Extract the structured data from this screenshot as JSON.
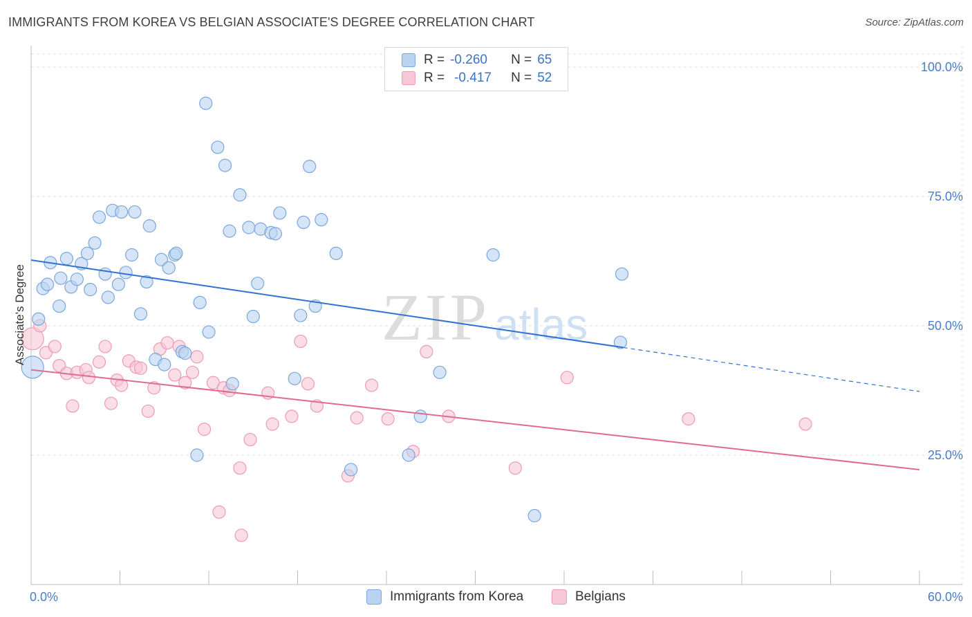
{
  "title": "IMMIGRANTS FROM KOREA VS BELGIAN ASSOCIATE'S DEGREE CORRELATION CHART",
  "source": "Source: ZipAtlas.com",
  "watermark": {
    "zip": "ZIP",
    "atlas": "atlas"
  },
  "legend": {
    "rows": [
      {
        "r_label": "R =",
        "r_value": "-0.260",
        "n_label": "N =",
        "n_value": "65"
      },
      {
        "r_label": "R =",
        "r_value": "-0.417",
        "n_label": "N =",
        "n_value": "52"
      }
    ]
  },
  "bottom_legend": [
    "Immigrants from Korea",
    "Belgians"
  ],
  "colors": {
    "korea_fill": "#b9d3f2",
    "korea_stroke": "#7aa6dd",
    "korea_line": "#2f72d0",
    "belgian_fill": "#f8c7d6",
    "belgian_stroke": "#ec9ab5",
    "belgian_line": "#e06a95",
    "tick_label": "#4a7cc8",
    "grid": "#dcdcdc"
  },
  "chart_data": {
    "type": "scatter",
    "xlabel": "",
    "ylabel": "Associate's Degree",
    "xlim": [
      0,
      60
    ],
    "ylim": [
      0,
      105
    ],
    "x_tick_labels": [
      {
        "value": 0,
        "label": "0.0%"
      },
      {
        "value": 60,
        "label": "60.0%"
      }
    ],
    "y_tick_labels": [
      {
        "value": 25,
        "label": "25.0%"
      },
      {
        "value": 50,
        "label": "50.0%"
      },
      {
        "value": 75,
        "label": "75.0%"
      },
      {
        "value": 100,
        "label": "100.0%"
      }
    ],
    "grid": true,
    "series": [
      {
        "name": "Immigrants from Korea",
        "r": -0.26,
        "n": 65,
        "trend": {
          "x0": 0,
          "y0": 62.7,
          "x1": 40,
          "y1": 45.8,
          "dashed_to_x": 60,
          "dashed_to_y": 37.3
        },
        "points": [
          [
            0.1,
            42.0
          ],
          [
            0.5,
            51.3
          ],
          [
            0.8,
            57.2
          ],
          [
            1.1,
            58.0
          ],
          [
            1.3,
            62.2
          ],
          [
            1.9,
            53.8
          ],
          [
            2.0,
            59.2
          ],
          [
            2.4,
            63.0
          ],
          [
            2.7,
            57.5
          ],
          [
            3.1,
            59.0
          ],
          [
            3.4,
            62.0
          ],
          [
            3.8,
            64.0
          ],
          [
            4.0,
            57.0
          ],
          [
            4.3,
            66.0
          ],
          [
            4.6,
            71.0
          ],
          [
            5.0,
            60.0
          ],
          [
            5.2,
            55.5
          ],
          [
            5.5,
            72.3
          ],
          [
            5.9,
            58.0
          ],
          [
            6.1,
            72.0
          ],
          [
            6.4,
            60.3
          ],
          [
            6.8,
            63.7
          ],
          [
            7.0,
            72.0
          ],
          [
            7.4,
            52.3
          ],
          [
            7.8,
            58.5
          ],
          [
            8.0,
            69.3
          ],
          [
            8.4,
            43.5
          ],
          [
            8.8,
            62.8
          ],
          [
            9.0,
            42.5
          ],
          [
            9.3,
            61.2
          ],
          [
            9.7,
            63.7
          ],
          [
            9.8,
            64.0
          ],
          [
            10.2,
            45.0
          ],
          [
            10.4,
            44.7
          ],
          [
            11.2,
            25.0
          ],
          [
            11.4,
            54.5
          ],
          [
            11.8,
            93.0
          ],
          [
            12.0,
            48.8
          ],
          [
            12.6,
            84.5
          ],
          [
            13.1,
            81.0
          ],
          [
            13.6,
            38.8
          ],
          [
            13.4,
            68.3
          ],
          [
            14.1,
            75.3
          ],
          [
            14.7,
            69.0
          ],
          [
            15.0,
            51.8
          ],
          [
            15.3,
            58.2
          ],
          [
            15.5,
            68.7
          ],
          [
            16.2,
            68.0
          ],
          [
            16.5,
            67.8
          ],
          [
            16.8,
            71.8
          ],
          [
            17.8,
            39.8
          ],
          [
            18.2,
            52.0
          ],
          [
            18.4,
            70.0
          ],
          [
            18.8,
            80.8
          ],
          [
            19.2,
            53.8
          ],
          [
            19.6,
            70.5
          ],
          [
            20.6,
            64.0
          ],
          [
            21.6,
            22.2
          ],
          [
            25.5,
            25.0
          ],
          [
            26.3,
            32.5
          ],
          [
            27.6,
            41.0
          ],
          [
            31.2,
            63.7
          ],
          [
            34.0,
            13.3
          ],
          [
            39.8,
            46.8
          ],
          [
            39.9,
            60.0
          ]
        ]
      },
      {
        "name": "Belgians",
        "r": -0.417,
        "n": 52,
        "trend": {
          "x0": 0,
          "y0": 41.5,
          "x1": 60,
          "y1": 22.2
        },
        "points": [
          [
            0.1,
            47.5
          ],
          [
            0.6,
            50.0
          ],
          [
            1.0,
            44.8
          ],
          [
            1.6,
            46.0
          ],
          [
            1.9,
            42.3
          ],
          [
            2.4,
            40.8
          ],
          [
            2.8,
            34.5
          ],
          [
            3.1,
            41.0
          ],
          [
            3.7,
            41.5
          ],
          [
            3.9,
            40.0
          ],
          [
            4.6,
            43.0
          ],
          [
            5.0,
            46.0
          ],
          [
            5.4,
            35.0
          ],
          [
            5.8,
            39.5
          ],
          [
            6.1,
            38.5
          ],
          [
            6.6,
            43.2
          ],
          [
            7.1,
            42.0
          ],
          [
            7.4,
            41.8
          ],
          [
            7.9,
            33.5
          ],
          [
            8.3,
            38.0
          ],
          [
            8.7,
            45.5
          ],
          [
            9.2,
            46.7
          ],
          [
            9.7,
            40.5
          ],
          [
            10.0,
            46.0
          ],
          [
            10.4,
            39.0
          ],
          [
            10.9,
            41.0
          ],
          [
            11.2,
            44.0
          ],
          [
            11.7,
            30.0
          ],
          [
            12.3,
            39.0
          ],
          [
            12.7,
            14.0
          ],
          [
            13.0,
            38.0
          ],
          [
            13.4,
            37.5
          ],
          [
            14.1,
            22.5
          ],
          [
            14.2,
            9.5
          ],
          [
            14.8,
            28.0
          ],
          [
            16.0,
            37.0
          ],
          [
            16.3,
            31.0
          ],
          [
            17.6,
            32.5
          ],
          [
            18.2,
            47.0
          ],
          [
            18.7,
            38.8
          ],
          [
            19.3,
            34.5
          ],
          [
            21.4,
            21.0
          ],
          [
            22.0,
            32.2
          ],
          [
            23.0,
            38.5
          ],
          [
            24.1,
            32.0
          ],
          [
            25.8,
            25.7
          ],
          [
            26.7,
            45.0
          ],
          [
            28.2,
            32.5
          ],
          [
            32.7,
            22.5
          ],
          [
            36.2,
            40.0
          ],
          [
            44.4,
            32.0
          ],
          [
            52.3,
            31.0
          ]
        ]
      }
    ]
  }
}
